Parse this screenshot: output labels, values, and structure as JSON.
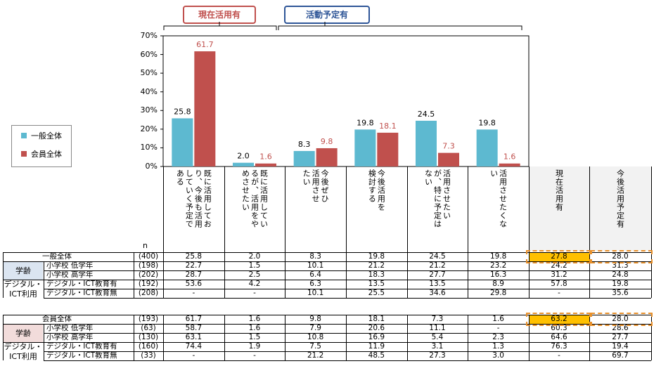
{
  "tags": {
    "current": "現在活用有",
    "plan": "活動予定有"
  },
  "legend": [
    {
      "label": "一般全体",
      "color": "#5db9d0"
    },
    {
      "label": "会員全体",
      "color": "#c0504d"
    }
  ],
  "chart_data": {
    "type": "bar",
    "ylim": [
      0,
      70
    ],
    "yticks": [
      "0%",
      "10%",
      "20%",
      "30%",
      "40%",
      "50%",
      "60%",
      "70%"
    ],
    "categories": [
      "既に活用しており、今後も活用していく予定である",
      "既に活用しているが、活用をやめさせたい",
      "今後ぜひ活用させたい",
      "今後活用を検討する",
      "活用させたいが、特に予定はない",
      "活用させたくない"
    ],
    "series": [
      {
        "name": "一般全体",
        "values": [
          25.8,
          2.0,
          8.3,
          19.8,
          24.5,
          19.8
        ],
        "labels": [
          "25.8",
          "2.0",
          "8.3",
          "19.8",
          "24.5",
          "19.8"
        ]
      },
      {
        "name": "会員全体",
        "values": [
          61.7,
          1.6,
          9.8,
          18.1,
          7.3,
          1.6
        ],
        "labels": [
          "61.7",
          "1.6",
          "9.8",
          "18.1",
          "7.3",
          "1.6"
        ]
      }
    ]
  },
  "column_headers": [
    "既に活用してお\nり、今後も活用\nしていく予定で\nある",
    "既に活用してい\nるが、活用をや\nめさせたい",
    "今後ぜひ\n活用させ\nたい",
    "今後活用を\n検討する",
    "活用させたい\nが、特に予定は\nない",
    "活用させたくな\nい",
    "現在活用有",
    "今後活用予定有"
  ],
  "n_header": "n",
  "table": {
    "block1": {
      "total": {
        "label": "一般全体",
        "n": "(400)",
        "values": [
          "25.8",
          "2.0",
          "8.3",
          "19.8",
          "24.5",
          "19.8",
          "27.8",
          "28.0"
        ]
      },
      "groups": [
        {
          "label": "学齢",
          "rows": [
            {
              "label": "小学校 低学年",
              "n": "(198)",
              "values": [
                "22.7",
                "1.5",
                "10.1",
                "21.2",
                "21.2",
                "23.2",
                "24.2",
                "31.3"
              ]
            },
            {
              "label": "小学校 高学年",
              "n": "(202)",
              "values": [
                "28.7",
                "2.5",
                "6.4",
                "18.3",
                "27.7",
                "16.3",
                "31.2",
                "24.8"
              ]
            }
          ]
        },
        {
          "label": "デジタル・\nICT利用",
          "rows": [
            {
              "label": "デジタル・ICT教育有",
              "n": "(192)",
              "values": [
                "53.6",
                "4.2",
                "6.3",
                "13.5",
                "13.5",
                "8.9",
                "57.8",
                "19.8"
              ]
            },
            {
              "label": "デジタル・ICT教育無",
              "n": "(208)",
              "values": [
                "-",
                "-",
                "10.1",
                "25.5",
                "34.6",
                "29.8",
                "-",
                "35.6"
              ]
            }
          ]
        }
      ]
    },
    "block2": {
      "total": {
        "label": "会員全体",
        "n": "(193)",
        "values": [
          "61.7",
          "1.6",
          "9.8",
          "18.1",
          "7.3",
          "1.6",
          "63.2",
          "28.0"
        ]
      },
      "groups": [
        {
          "label": "学齢",
          "rows": [
            {
              "label": "小学校 低学年",
              "n": "(63)",
              "values": [
                "58.7",
                "1.6",
                "7.9",
                "20.6",
                "11.1",
                "-",
                "60.3",
                "28.6"
              ]
            },
            {
              "label": "小学校 高学年",
              "n": "(130)",
              "values": [
                "63.1",
                "1.5",
                "10.8",
                "16.9",
                "5.4",
                "2.3",
                "64.6",
                "27.7"
              ]
            }
          ]
        },
        {
          "label": "デジタル・\nICT利用",
          "rows": [
            {
              "label": "デジタル・ICT教育有",
              "n": "(160)",
              "values": [
                "74.4",
                "1.9",
                "7.5",
                "11.9",
                "3.1",
                "1.3",
                "76.3",
                "19.4"
              ]
            },
            {
              "label": "デジタル・ICT教育無",
              "n": "(33)",
              "values": [
                "-",
                "-",
                "21.2",
                "48.5",
                "27.3",
                "3.0",
                "-",
                "69.7"
              ]
            }
          ]
        }
      ]
    }
  }
}
